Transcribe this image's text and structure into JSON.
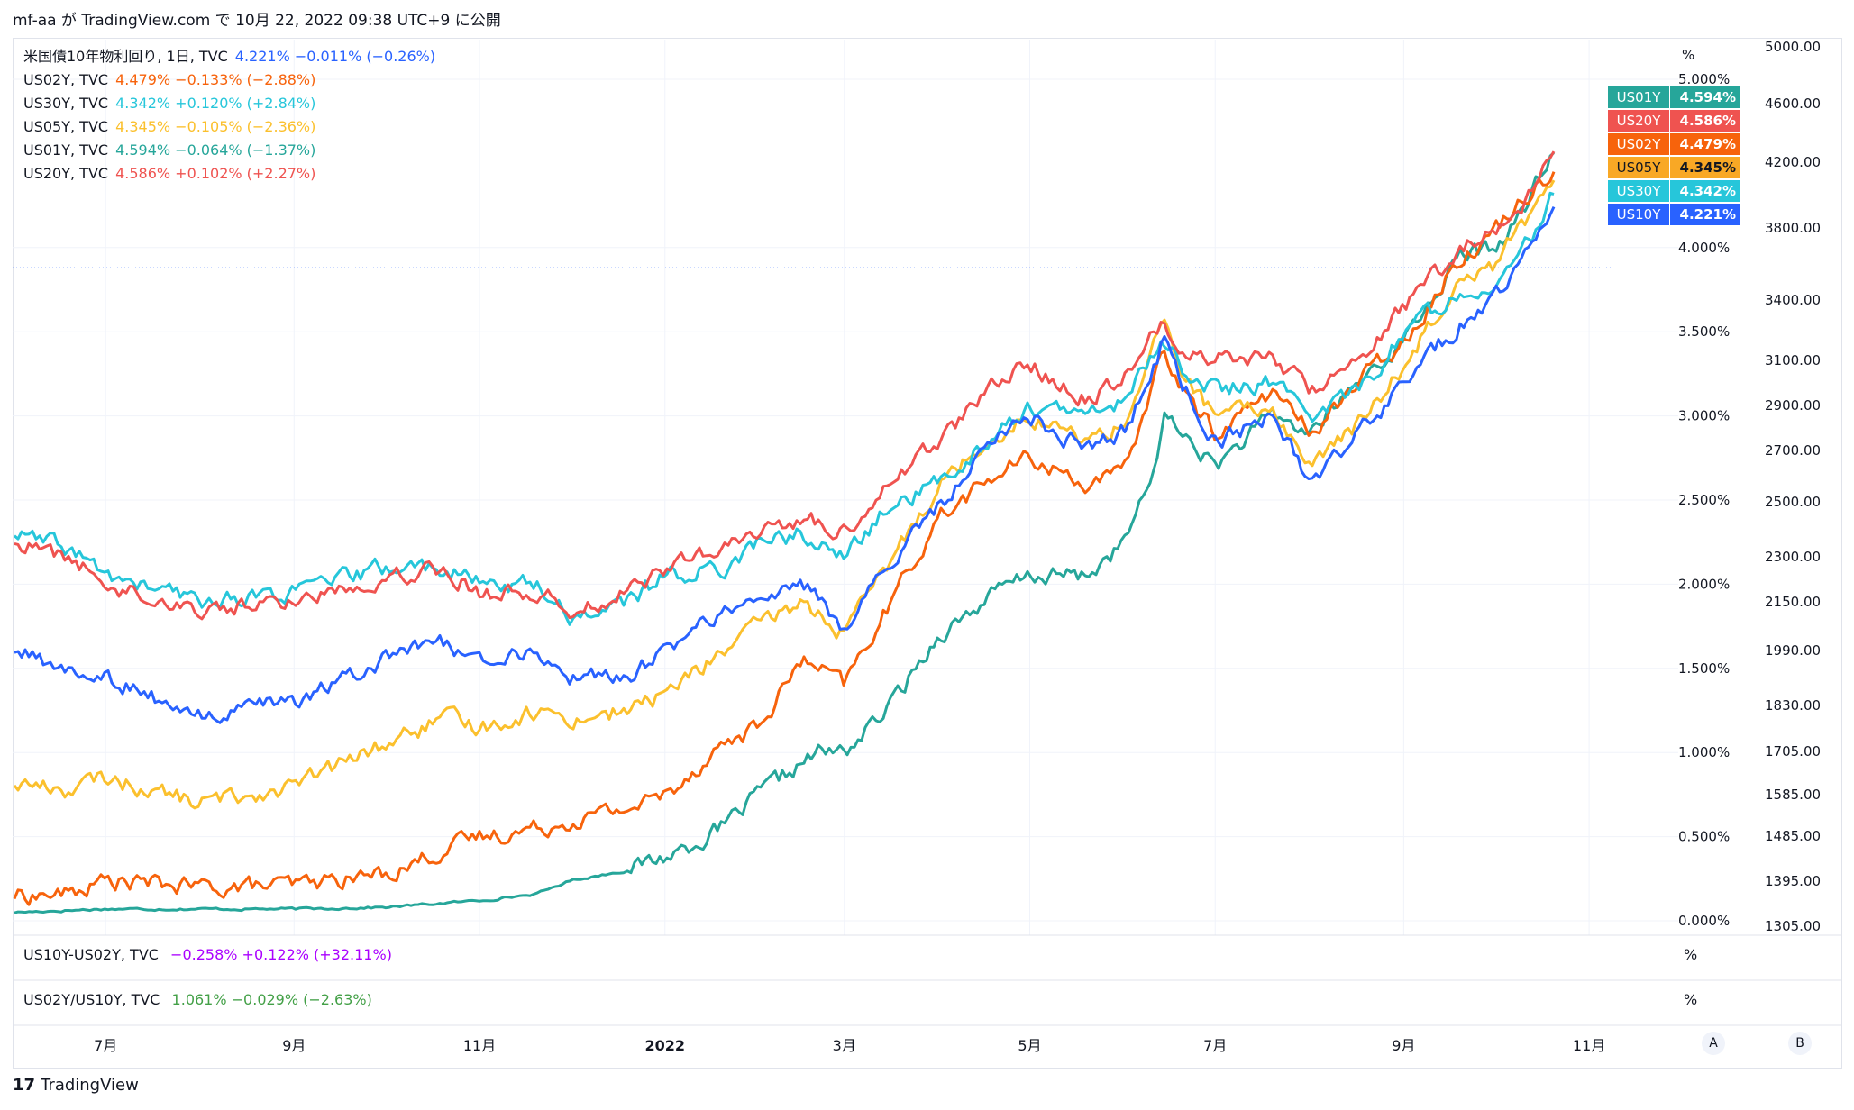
{
  "header": {
    "attribution": "mf-aa が TradingView.com で 10月 22, 2022 09:38 UTC+9 に公開"
  },
  "legend": [
    {
      "name": "米国債10年物利回り, 1日, TVC",
      "values": "4.221%  −0.011% (−0.26%)",
      "color": "#2962ff"
    },
    {
      "name": "US02Y, TVC",
      "values": "4.479%  −0.133% (−2.88%)",
      "color": "#f7630c"
    },
    {
      "name": "US30Y, TVC",
      "values": "4.342%  +0.120% (+2.84%)",
      "color": "#26c6da"
    },
    {
      "name": "US05Y, TVC",
      "values": "4.345%  −0.105% (−2.36%)",
      "color": "#fbc02d"
    },
    {
      "name": "US01Y, TVC",
      "values": "4.594%  −0.064% (−1.37%)",
      "color": "#26a69a"
    },
    {
      "name": "US20Y, TVC",
      "values": "4.586%  +0.102% (+2.27%)",
      "color": "#ef5350"
    }
  ],
  "badges": [
    {
      "symbol": "US01Y",
      "value": "4.594%",
      "color": "#26a69a"
    },
    {
      "symbol": "US20Y",
      "value": "4.586%",
      "color": "#ef5350"
    },
    {
      "symbol": "US02Y",
      "value": "4.479%",
      "color": "#f7630c"
    },
    {
      "symbol": "US05Y",
      "value": "4.345%",
      "color": "#f9a825"
    },
    {
      "symbol": "US30Y",
      "value": "4.342%",
      "color": "#26c6da"
    },
    {
      "symbol": "US10Y",
      "value": "4.221%",
      "color": "#2962ff"
    }
  ],
  "pane2": {
    "name": "US10Y-US02Y, TVC",
    "values": "−0.258%  +0.122% (+32.11%)",
    "color": "#aa00ff",
    "unit": "%"
  },
  "pane3": {
    "name": "US02Y/US10Y, TVC",
    "values": "1.061%  −0.029% (−2.63%)",
    "color": "#43a047",
    "unit": "%"
  },
  "footer": {
    "brand": "TradingView",
    "scale_a": "A",
    "scale_b": "B"
  },
  "chart_data": {
    "type": "line",
    "x_start": "2021-06-01",
    "x_end": "2022-10-21",
    "x_tick_labels": [
      {
        "label": "7月",
        "date": "2021-07-01"
      },
      {
        "label": "9月",
        "date": "2021-09-01"
      },
      {
        "label": "11月",
        "date": "2021-11-01"
      },
      {
        "label": "2022",
        "date": "2022-01-01"
      },
      {
        "label": "3月",
        "date": "2022-03-01"
      },
      {
        "label": "5月",
        "date": "2022-05-01"
      },
      {
        "label": "7月",
        "date": "2022-07-01"
      },
      {
        "label": "9月",
        "date": "2022-09-01"
      },
      {
        "label": "11月",
        "date": "2022-11-01"
      }
    ],
    "y_left_unit": "%",
    "y_left_ticks": [
      "5.000%",
      "4.000%",
      "3.500%",
      "3.000%",
      "2.500%",
      "2.000%",
      "1.500%",
      "1.000%",
      "0.500%",
      "0.000%"
    ],
    "y_right_ticks": [
      "5000.00",
      "4600.00",
      "4200.00",
      "3800.00",
      "3400.00",
      "3100.00",
      "2900.00",
      "2700.00",
      "2500.00",
      "2300.00",
      "2150.00",
      "1990.00",
      "1830.00",
      "1705.00",
      "1585.00",
      "1485.00",
      "1395.00",
      "1305.00"
    ],
    "series": [
      {
        "name": "US01Y",
        "color": "#26a69a",
        "points": [
          [
            "2021-06-01",
            0.05
          ],
          [
            "2021-07-01",
            0.07
          ],
          [
            "2021-08-01",
            0.07
          ],
          [
            "2021-09-01",
            0.07
          ],
          [
            "2021-10-01",
            0.08
          ],
          [
            "2021-11-01",
            0.12
          ],
          [
            "2021-11-20",
            0.16
          ],
          [
            "2021-12-01",
            0.24
          ],
          [
            "2021-12-20",
            0.3
          ],
          [
            "2022-01-01",
            0.38
          ],
          [
            "2022-01-20",
            0.55
          ],
          [
            "2022-02-01",
            0.75
          ],
          [
            "2022-02-20",
            1.0
          ],
          [
            "2022-03-01",
            1.0
          ],
          [
            "2022-03-15",
            1.25
          ],
          [
            "2022-04-01",
            1.7
          ],
          [
            "2022-04-20",
            1.95
          ],
          [
            "2022-05-01",
            2.05
          ],
          [
            "2022-05-20",
            2.05
          ],
          [
            "2022-06-01",
            2.25
          ],
          [
            "2022-06-10",
            2.6
          ],
          [
            "2022-06-14",
            3.0
          ],
          [
            "2022-06-20",
            2.9
          ],
          [
            "2022-07-01",
            2.7
          ],
          [
            "2022-07-20",
            3.0
          ],
          [
            "2022-08-01",
            2.9
          ],
          [
            "2022-08-20",
            3.25
          ],
          [
            "2022-09-01",
            3.45
          ],
          [
            "2022-09-20",
            3.95
          ],
          [
            "2022-10-01",
            4.0
          ],
          [
            "2022-10-10",
            4.2
          ],
          [
            "2022-10-21",
            4.59
          ]
        ]
      },
      {
        "name": "US02Y",
        "color": "#f7630c",
        "points": [
          [
            "2021-06-01",
            0.15
          ],
          [
            "2021-06-20",
            0.16
          ],
          [
            "2021-07-01",
            0.24
          ],
          [
            "2021-08-01",
            0.2
          ],
          [
            "2021-09-01",
            0.21
          ],
          [
            "2021-10-01",
            0.28
          ],
          [
            "2021-10-20",
            0.42
          ],
          [
            "2021-11-01",
            0.5
          ],
          [
            "2021-11-20",
            0.55
          ],
          [
            "2021-12-01",
            0.6
          ],
          [
            "2021-12-20",
            0.67
          ],
          [
            "2022-01-01",
            0.75
          ],
          [
            "2022-01-20",
            1.05
          ],
          [
            "2022-02-01",
            1.15
          ],
          [
            "2022-02-15",
            1.55
          ],
          [
            "2022-03-01",
            1.4
          ],
          [
            "2022-03-15",
            1.85
          ],
          [
            "2022-04-01",
            2.4
          ],
          [
            "2022-04-20",
            2.65
          ],
          [
            "2022-05-01",
            2.75
          ],
          [
            "2022-05-20",
            2.6
          ],
          [
            "2022-06-01",
            2.65
          ],
          [
            "2022-06-14",
            3.4
          ],
          [
            "2022-06-20",
            3.15
          ],
          [
            "2022-07-01",
            2.9
          ],
          [
            "2022-07-20",
            3.15
          ],
          [
            "2022-08-01",
            2.9
          ],
          [
            "2022-08-20",
            3.25
          ],
          [
            "2022-09-01",
            3.45
          ],
          [
            "2022-09-20",
            3.95
          ],
          [
            "2022-10-01",
            4.1
          ],
          [
            "2022-10-10",
            4.3
          ],
          [
            "2022-10-21",
            4.48
          ]
        ]
      },
      {
        "name": "US05Y",
        "color": "#fbc02d",
        "points": [
          [
            "2021-06-01",
            0.82
          ],
          [
            "2021-06-20",
            0.78
          ],
          [
            "2021-07-01",
            0.85
          ],
          [
            "2021-08-01",
            0.7
          ],
          [
            "2021-09-01",
            0.8
          ],
          [
            "2021-10-01",
            1.05
          ],
          [
            "2021-10-20",
            1.2
          ],
          [
            "2021-11-01",
            1.15
          ],
          [
            "2021-11-20",
            1.25
          ],
          [
            "2021-12-01",
            1.2
          ],
          [
            "2021-12-20",
            1.25
          ],
          [
            "2022-01-01",
            1.35
          ],
          [
            "2022-01-20",
            1.6
          ],
          [
            "2022-02-01",
            1.75
          ],
          [
            "2022-02-15",
            1.9
          ],
          [
            "2022-03-01",
            1.7
          ],
          [
            "2022-03-15",
            2.1
          ],
          [
            "2022-04-01",
            2.6
          ],
          [
            "2022-04-20",
            2.9
          ],
          [
            "2022-05-01",
            3.0
          ],
          [
            "2022-05-20",
            2.85
          ],
          [
            "2022-06-01",
            2.95
          ],
          [
            "2022-06-14",
            3.55
          ],
          [
            "2022-06-20",
            3.25
          ],
          [
            "2022-07-01",
            3.0
          ],
          [
            "2022-07-20",
            3.05
          ],
          [
            "2022-08-01",
            2.7
          ],
          [
            "2022-08-20",
            3.0
          ],
          [
            "2022-09-01",
            3.3
          ],
          [
            "2022-09-20",
            3.85
          ],
          [
            "2022-10-01",
            3.9
          ],
          [
            "2022-10-10",
            4.15
          ],
          [
            "2022-10-21",
            4.35
          ]
        ]
      },
      {
        "name": "US10Y",
        "color": "#2962ff",
        "points": [
          [
            "2021-06-01",
            1.6
          ],
          [
            "2021-06-20",
            1.48
          ],
          [
            "2021-07-01",
            1.45
          ],
          [
            "2021-08-01",
            1.2
          ],
          [
            "2021-09-01",
            1.3
          ],
          [
            "2021-10-01",
            1.55
          ],
          [
            "2021-10-20",
            1.65
          ],
          [
            "2021-11-01",
            1.55
          ],
          [
            "2021-11-20",
            1.6
          ],
          [
            "2021-12-01",
            1.45
          ],
          [
            "2021-12-20",
            1.45
          ],
          [
            "2022-01-01",
            1.6
          ],
          [
            "2022-01-20",
            1.85
          ],
          [
            "2022-02-01",
            1.9
          ],
          [
            "2022-02-15",
            2.0
          ],
          [
            "2022-03-01",
            1.75
          ],
          [
            "2022-03-15",
            2.1
          ],
          [
            "2022-04-01",
            2.45
          ],
          [
            "2022-04-20",
            2.9
          ],
          [
            "2022-05-01",
            3.0
          ],
          [
            "2022-05-20",
            2.8
          ],
          [
            "2022-06-01",
            2.9
          ],
          [
            "2022-06-14",
            3.45
          ],
          [
            "2022-06-20",
            3.2
          ],
          [
            "2022-07-01",
            2.85
          ],
          [
            "2022-07-20",
            3.0
          ],
          [
            "2022-08-01",
            2.6
          ],
          [
            "2022-08-20",
            2.95
          ],
          [
            "2022-09-01",
            3.2
          ],
          [
            "2022-09-20",
            3.55
          ],
          [
            "2022-10-01",
            3.7
          ],
          [
            "2022-10-10",
            3.9
          ],
          [
            "2022-10-21",
            4.22
          ]
        ]
      },
      {
        "name": "US30Y",
        "color": "#26c6da",
        "points": [
          [
            "2021-06-01",
            2.3
          ],
          [
            "2021-06-20",
            2.2
          ],
          [
            "2021-07-01",
            2.05
          ],
          [
            "2021-08-01",
            1.9
          ],
          [
            "2021-09-01",
            1.95
          ],
          [
            "2021-10-01",
            2.1
          ],
          [
            "2021-10-20",
            2.1
          ],
          [
            "2021-11-01",
            2.0
          ],
          [
            "2021-11-20",
            2.0
          ],
          [
            "2021-12-01",
            1.8
          ],
          [
            "2021-12-20",
            1.9
          ],
          [
            "2022-01-01",
            2.05
          ],
          [
            "2022-01-20",
            2.1
          ],
          [
            "2022-02-01",
            2.25
          ],
          [
            "2022-02-15",
            2.3
          ],
          [
            "2022-03-01",
            2.15
          ],
          [
            "2022-03-15",
            2.45
          ],
          [
            "2022-04-01",
            2.6
          ],
          [
            "2022-04-20",
            2.9
          ],
          [
            "2022-05-01",
            3.05
          ],
          [
            "2022-05-20",
            3.0
          ],
          [
            "2022-06-01",
            3.1
          ],
          [
            "2022-06-14",
            3.45
          ],
          [
            "2022-06-20",
            3.3
          ],
          [
            "2022-07-01",
            3.15
          ],
          [
            "2022-07-20",
            3.2
          ],
          [
            "2022-08-01",
            3.0
          ],
          [
            "2022-08-20",
            3.2
          ],
          [
            "2022-09-01",
            3.5
          ],
          [
            "2022-09-20",
            3.75
          ],
          [
            "2022-10-01",
            3.8
          ],
          [
            "2022-10-10",
            3.95
          ],
          [
            "2022-10-21",
            4.34
          ]
        ]
      },
      {
        "name": "US20Y",
        "color": "#ef5350",
        "points": [
          [
            "2021-06-01",
            2.25
          ],
          [
            "2021-06-20",
            2.15
          ],
          [
            "2021-07-01",
            2.0
          ],
          [
            "2021-08-01",
            1.85
          ],
          [
            "2021-09-01",
            1.9
          ],
          [
            "2021-10-01",
            2.05
          ],
          [
            "2021-10-20",
            2.1
          ],
          [
            "2021-11-01",
            1.95
          ],
          [
            "2021-11-20",
            1.95
          ],
          [
            "2021-12-01",
            1.85
          ],
          [
            "2021-12-20",
            1.95
          ],
          [
            "2022-01-01",
            2.1
          ],
          [
            "2022-01-20",
            2.2
          ],
          [
            "2022-02-01",
            2.3
          ],
          [
            "2022-02-15",
            2.4
          ],
          [
            "2022-03-01",
            2.3
          ],
          [
            "2022-03-15",
            2.6
          ],
          [
            "2022-04-01",
            2.85
          ],
          [
            "2022-04-20",
            3.2
          ],
          [
            "2022-05-01",
            3.3
          ],
          [
            "2022-05-20",
            3.1
          ],
          [
            "2022-06-01",
            3.25
          ],
          [
            "2022-06-14",
            3.55
          ],
          [
            "2022-06-20",
            3.4
          ],
          [
            "2022-07-01",
            3.35
          ],
          [
            "2022-07-20",
            3.35
          ],
          [
            "2022-08-01",
            3.15
          ],
          [
            "2022-08-20",
            3.4
          ],
          [
            "2022-09-01",
            3.65
          ],
          [
            "2022-09-20",
            4.0
          ],
          [
            "2022-10-01",
            4.1
          ],
          [
            "2022-10-10",
            4.2
          ],
          [
            "2022-10-21",
            4.59
          ]
        ]
      }
    ]
  }
}
